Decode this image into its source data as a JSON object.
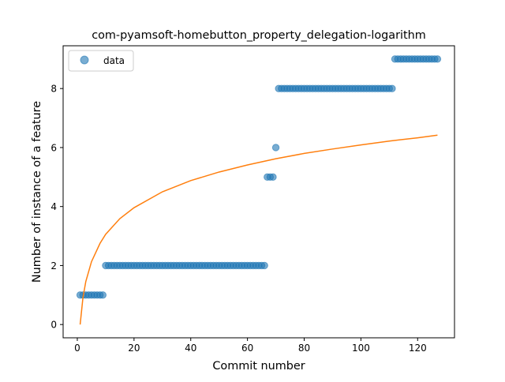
{
  "chart_data": {
    "type": "scatter",
    "title": "com-pyamsoft-homebutton_property_delegation-logarithm",
    "xlabel": "Commit number",
    "ylabel": "Number of instance of a feature",
    "xlim": [
      -5,
      133
    ],
    "ylim": [
      -0.45,
      9.45
    ],
    "xticks": [
      0,
      20,
      40,
      60,
      80,
      100,
      120
    ],
    "yticks": [
      0,
      2,
      4,
      6,
      8
    ],
    "grid": false,
    "legend_position": "top-left",
    "series": [
      {
        "name": "data",
        "kind": "scatter",
        "color": "#1f77b4",
        "points": [
          [
            1,
            1
          ],
          [
            2,
            1
          ],
          [
            3,
            1
          ],
          [
            4,
            1
          ],
          [
            5,
            1
          ],
          [
            6,
            1
          ],
          [
            7,
            1
          ],
          [
            8,
            1
          ],
          [
            9,
            1
          ],
          [
            10,
            2
          ],
          [
            11,
            2
          ],
          [
            12,
            2
          ],
          [
            13,
            2
          ],
          [
            14,
            2
          ],
          [
            15,
            2
          ],
          [
            16,
            2
          ],
          [
            17,
            2
          ],
          [
            18,
            2
          ],
          [
            19,
            2
          ],
          [
            20,
            2
          ],
          [
            21,
            2
          ],
          [
            22,
            2
          ],
          [
            23,
            2
          ],
          [
            24,
            2
          ],
          [
            25,
            2
          ],
          [
            26,
            2
          ],
          [
            27,
            2
          ],
          [
            28,
            2
          ],
          [
            29,
            2
          ],
          [
            30,
            2
          ],
          [
            31,
            2
          ],
          [
            32,
            2
          ],
          [
            33,
            2
          ],
          [
            34,
            2
          ],
          [
            35,
            2
          ],
          [
            36,
            2
          ],
          [
            37,
            2
          ],
          [
            38,
            2
          ],
          [
            39,
            2
          ],
          [
            40,
            2
          ],
          [
            41,
            2
          ],
          [
            42,
            2
          ],
          [
            43,
            2
          ],
          [
            44,
            2
          ],
          [
            45,
            2
          ],
          [
            46,
            2
          ],
          [
            47,
            2
          ],
          [
            48,
            2
          ],
          [
            49,
            2
          ],
          [
            50,
            2
          ],
          [
            51,
            2
          ],
          [
            52,
            2
          ],
          [
            53,
            2
          ],
          [
            54,
            2
          ],
          [
            55,
            2
          ],
          [
            56,
            2
          ],
          [
            57,
            2
          ],
          [
            58,
            2
          ],
          [
            59,
            2
          ],
          [
            60,
            2
          ],
          [
            61,
            2
          ],
          [
            62,
            2
          ],
          [
            63,
            2
          ],
          [
            64,
            2
          ],
          [
            65,
            2
          ],
          [
            66,
            2
          ],
          [
            67,
            5
          ],
          [
            68,
            5
          ],
          [
            69,
            5
          ],
          [
            70,
            6
          ],
          [
            71,
            8
          ],
          [
            72,
            8
          ],
          [
            73,
            8
          ],
          [
            74,
            8
          ],
          [
            75,
            8
          ],
          [
            76,
            8
          ],
          [
            77,
            8
          ],
          [
            78,
            8
          ],
          [
            79,
            8
          ],
          [
            80,
            8
          ],
          [
            81,
            8
          ],
          [
            82,
            8
          ],
          [
            83,
            8
          ],
          [
            84,
            8
          ],
          [
            85,
            8
          ],
          [
            86,
            8
          ],
          [
            87,
            8
          ],
          [
            88,
            8
          ],
          [
            89,
            8
          ],
          [
            90,
            8
          ],
          [
            91,
            8
          ],
          [
            92,
            8
          ],
          [
            93,
            8
          ],
          [
            94,
            8
          ],
          [
            95,
            8
          ],
          [
            96,
            8
          ],
          [
            97,
            8
          ],
          [
            98,
            8
          ],
          [
            99,
            8
          ],
          [
            100,
            8
          ],
          [
            101,
            8
          ],
          [
            102,
            8
          ],
          [
            103,
            8
          ],
          [
            104,
            8
          ],
          [
            105,
            8
          ],
          [
            106,
            8
          ],
          [
            107,
            8
          ],
          [
            108,
            8
          ],
          [
            109,
            8
          ],
          [
            110,
            8
          ],
          [
            111,
            8
          ],
          [
            112,
            9
          ],
          [
            113,
            9
          ],
          [
            114,
            9
          ],
          [
            115,
            9
          ],
          [
            116,
            9
          ],
          [
            117,
            9
          ],
          [
            118,
            9
          ],
          [
            119,
            9
          ],
          [
            120,
            9
          ],
          [
            121,
            9
          ],
          [
            122,
            9
          ],
          [
            123,
            9
          ],
          [
            124,
            9
          ],
          [
            125,
            9
          ],
          [
            126,
            9
          ],
          [
            127,
            9
          ]
        ]
      },
      {
        "kind": "line",
        "color": "#ff7f0e",
        "points": [
          [
            1,
            0.0
          ],
          [
            2,
            0.92
          ],
          [
            3,
            1.46
          ],
          [
            5,
            2.13
          ],
          [
            8,
            2.75
          ],
          [
            10,
            3.06
          ],
          [
            15,
            3.59
          ],
          [
            20,
            3.96
          ],
          [
            30,
            4.5
          ],
          [
            40,
            4.88
          ],
          [
            50,
            5.17
          ],
          [
            60,
            5.41
          ],
          [
            70,
            5.62
          ],
          [
            80,
            5.8
          ],
          [
            90,
            5.95
          ],
          [
            100,
            6.09
          ],
          [
            110,
            6.22
          ],
          [
            120,
            6.33
          ],
          [
            127,
            6.42
          ]
        ]
      }
    ]
  }
}
